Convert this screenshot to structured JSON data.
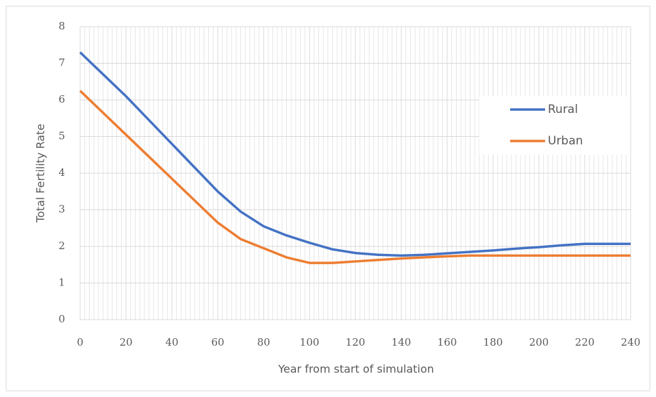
{
  "chart_data": {
    "type": "line",
    "x_label": "Year from start of simulation",
    "y_label": "Total Fertility Rate",
    "x": [
      0,
      10,
      20,
      30,
      40,
      50,
      60,
      70,
      80,
      90,
      100,
      110,
      120,
      130,
      140,
      150,
      160,
      170,
      180,
      190,
      200,
      210,
      220,
      230,
      240
    ],
    "series": [
      {
        "name": "Rural",
        "color": "#4472c4",
        "values": [
          7.3,
          6.7,
          6.1,
          5.45,
          4.8,
          4.15,
          3.5,
          2.95,
          2.55,
          2.3,
          2.1,
          1.92,
          1.82,
          1.77,
          1.75,
          1.77,
          1.81,
          1.85,
          1.89,
          1.94,
          1.98,
          2.03,
          2.07,
          2.07,
          2.07
        ]
      },
      {
        "name": "Urban",
        "color": "#ed7d31",
        "values": [
          6.25,
          5.65,
          5.05,
          4.45,
          3.85,
          3.25,
          2.65,
          2.2,
          1.95,
          1.7,
          1.55,
          1.55,
          1.59,
          1.63,
          1.67,
          1.7,
          1.73,
          1.75,
          1.75,
          1.75,
          1.75,
          1.75,
          1.75,
          1.75,
          1.75
        ]
      }
    ],
    "xlim": [
      0,
      240
    ],
    "xticks": [
      0,
      20,
      40,
      60,
      80,
      100,
      120,
      140,
      160,
      180,
      200,
      220,
      240
    ],
    "ylim": [
      0,
      8
    ],
    "yticks": [
      0,
      1,
      2,
      3,
      4,
      5,
      6,
      7,
      8
    ],
    "grid": true,
    "minor_x_grid_step": 2,
    "legend": "upper right"
  }
}
